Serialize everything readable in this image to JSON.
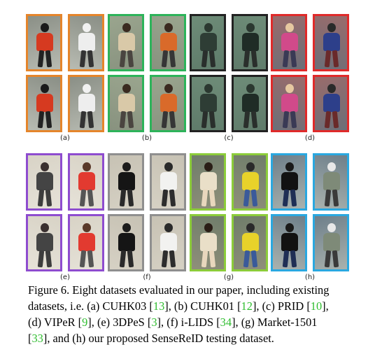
{
  "panels_top": [
    {
      "label": "(a)",
      "border": "#e5852b",
      "bg": [
        "#8a8f86",
        "#b8bbb2"
      ],
      "person": [
        "#1a1a1a",
        "#d63a20",
        "#222222"
      ],
      "person2": [
        "#f1f1f1",
        "#eeeeee",
        "#333333"
      ]
    },
    {
      "label": "(b)",
      "border": "#2db35a",
      "bg": [
        "#9aa58e",
        "#88927f"
      ],
      "person": [
        "#3a2a20",
        "#d9c9a8",
        "#4a4540"
      ],
      "person2": [
        "#3a2a20",
        "#d96a2a",
        "#363636"
      ]
    },
    {
      "label": "(c)",
      "border": "#222222",
      "bg": [
        "#6e8c78",
        "#5f7b6a"
      ],
      "person": [
        "#2b3830",
        "#2e3d35",
        "#2a2f2c"
      ],
      "person2": [
        "#2b3830",
        "#1f2c26",
        "#2a2f2c"
      ]
    },
    {
      "label": "(d)",
      "border": "#e02a2a",
      "bg": [
        "#9a6b6b",
        "#6b6f78"
      ],
      "person": [
        "#e6c8a0",
        "#d14a8a",
        "#3a3a55"
      ],
      "person2": [
        "#2a2a2a",
        "#2d3f8a",
        "#6a2a2a"
      ]
    }
  ],
  "panels_bottom": [
    {
      "label": "(e)",
      "border": "#8e4ccf",
      "bg": [
        "#d8d3c6",
        "#e6e2d8"
      ],
      "person": [
        "#3a3030",
        "#444444",
        "#3d3d3d"
      ],
      "person2": [
        "#5a3a2a",
        "#e23a30",
        "#555555"
      ]
    },
    {
      "label": "(f)",
      "border": "#8f8f8f",
      "bg": [
        "#c7c2b4",
        "#d6d1c4"
      ],
      "person": [
        "#1c1c1c",
        "#151515",
        "#2a2a2a"
      ],
      "person2": [
        "#2a2a2a",
        "#f2f2f0",
        "#2d2d2d"
      ]
    },
    {
      "label": "(g)",
      "border": "#8ccc3a",
      "bg": [
        "#6f7d6a",
        "#8f8f7a"
      ],
      "person": [
        "#2a1e16",
        "#e9dfc8",
        "#e8d7bd"
      ],
      "person2": [
        "#2a2a2a",
        "#e8d22a",
        "#3a5a9a"
      ]
    },
    {
      "label": "(h)",
      "border": "#2aa8e0",
      "bg": [
        "#6e7f8a",
        "#a9b2ae"
      ],
      "person": [
        "#1a1a1a",
        "#121212",
        "#1f2f55"
      ],
      "person2": [
        "#e8e8e8",
        "#7e8a78",
        "#3a3a3a"
      ]
    }
  ],
  "caption": {
    "l1": "Figure 6. Eight datasets evaluated in our paper, including existing",
    "l2a": "datasets, i.e. (a) CUHK03 [",
    "c13": "13",
    "l2b": "], (b) CUHK01 [",
    "c12": "12",
    "l2c": "], (c) PRID [",
    "c10": "10",
    "l2d": "],",
    "l3a": "(d) VIPeR [",
    "c9": "9",
    "l3b": "], (e) 3DPeS [",
    "c3": "3",
    "l3c": "], (f) i-LIDS [",
    "c34": "34",
    "l3d": "], (g) Market-1501",
    "l4a": "[",
    "c33": "33",
    "l4b": "], and (h) our proposed SenseReID testing dataset."
  },
  "colors": {
    "citation": "#2fbd2f"
  }
}
